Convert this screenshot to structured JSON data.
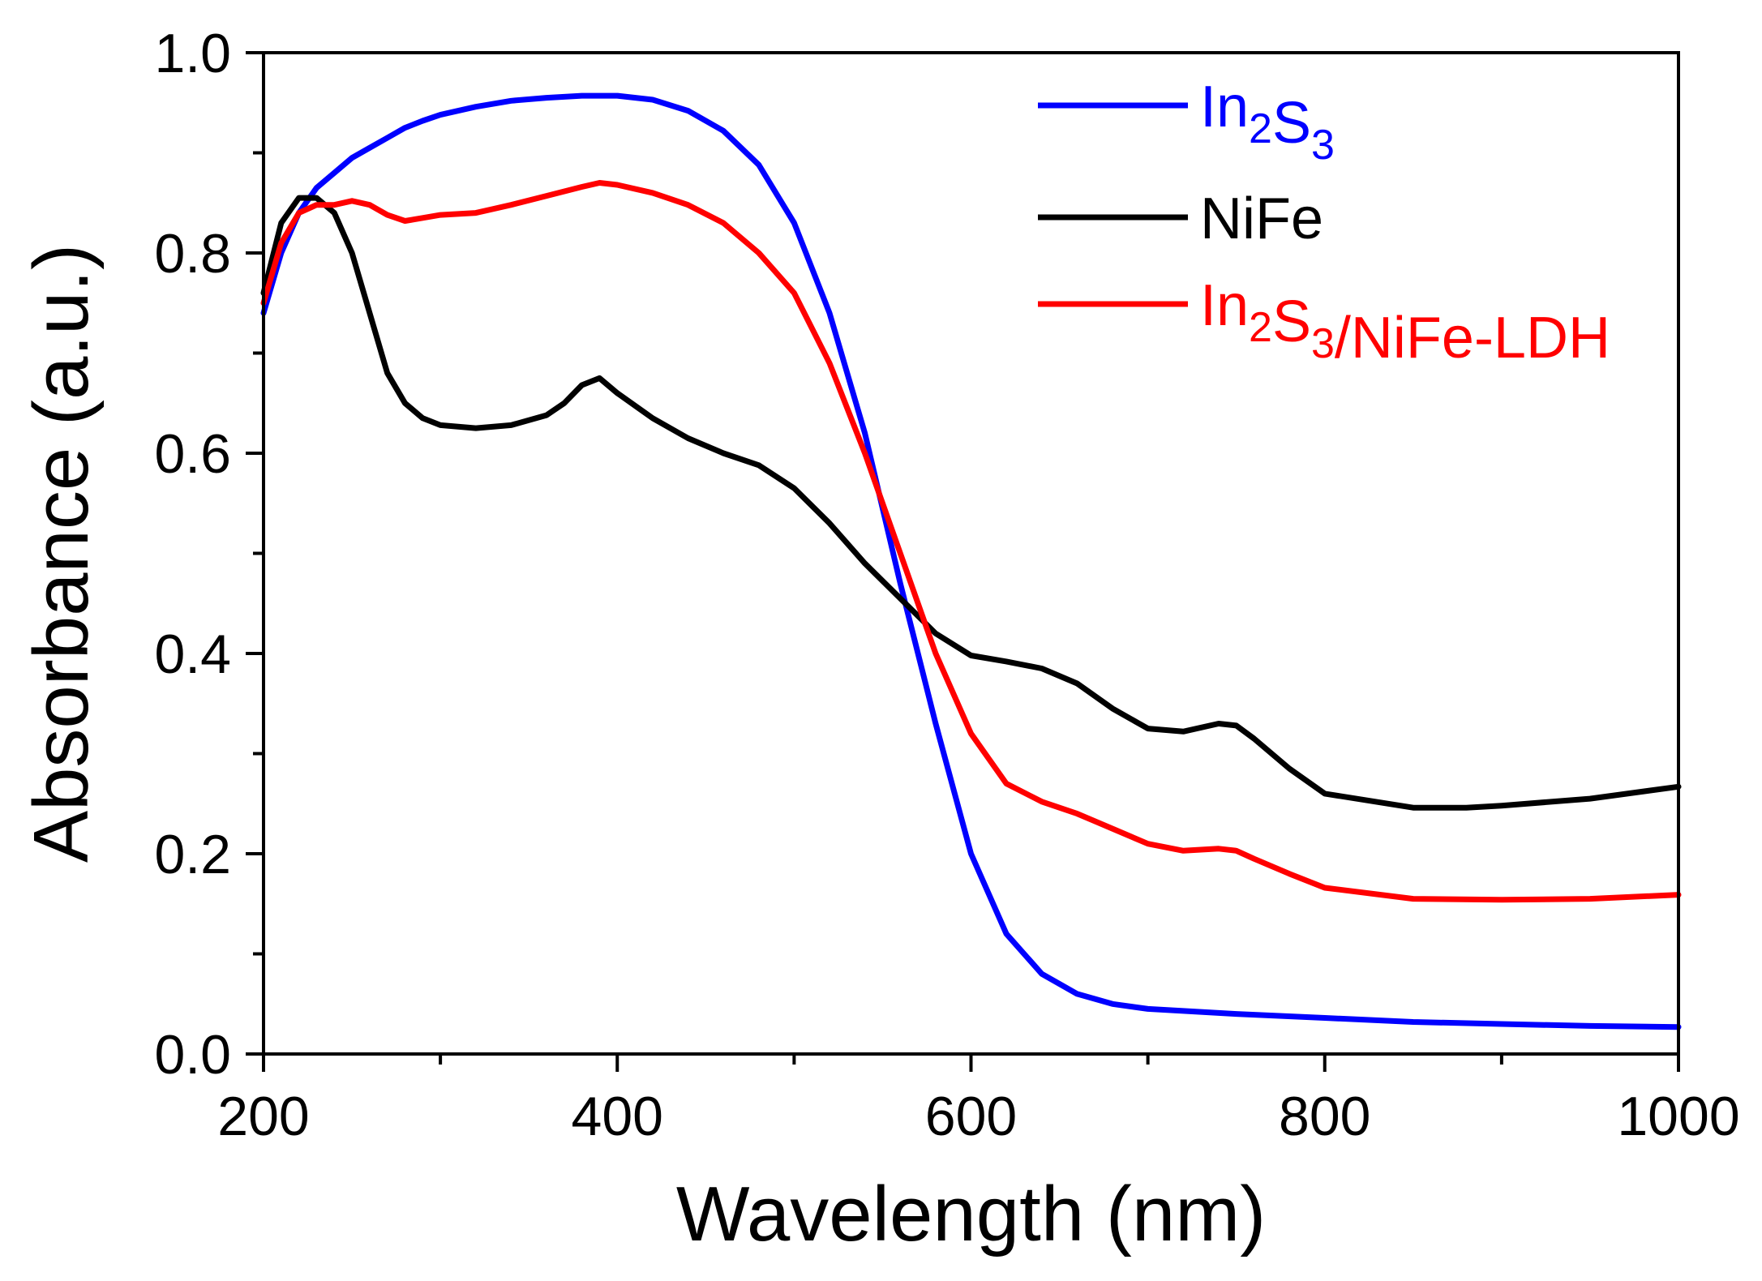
{
  "chart_data": {
    "type": "line",
    "title": "",
    "xlabel": "Wavelength (nm)",
    "ylabel": "Absorbance (a.u.)",
    "xlim": [
      200,
      1000
    ],
    "ylim": [
      0.0,
      1.0
    ],
    "xticks": [
      200,
      400,
      600,
      800,
      1000
    ],
    "xtick_labels": [
      "200",
      "400",
      "600",
      "800",
      "1000"
    ],
    "yticks": [
      0.0,
      0.2,
      0.4,
      0.6,
      0.8,
      1.0
    ],
    "ytick_labels": [
      "0.0",
      "0.2",
      "0.4",
      "0.6",
      "0.8",
      "1.0"
    ],
    "grid": false,
    "legend_position": "top-right",
    "series": [
      {
        "name": "In2S3",
        "legend_parts": [
          [
            "In",
            ""
          ],
          [
            "2",
            "sub"
          ],
          [
            "S",
            ""
          ],
          [
            "3",
            "sub"
          ]
        ],
        "color": "#0000ff",
        "x": [
          200,
          210,
          220,
          230,
          240,
          250,
          260,
          270,
          280,
          290,
          300,
          320,
          340,
          360,
          380,
          400,
          420,
          440,
          460,
          480,
          500,
          520,
          540,
          560,
          580,
          600,
          620,
          640,
          660,
          680,
          700,
          750,
          800,
          850,
          900,
          950,
          1000
        ],
        "y": [
          0.74,
          0.8,
          0.84,
          0.865,
          0.88,
          0.895,
          0.905,
          0.915,
          0.925,
          0.932,
          0.938,
          0.946,
          0.952,
          0.955,
          0.957,
          0.957,
          0.953,
          0.942,
          0.922,
          0.888,
          0.83,
          0.74,
          0.62,
          0.47,
          0.33,
          0.2,
          0.12,
          0.08,
          0.06,
          0.05,
          0.045,
          0.04,
          0.036,
          0.032,
          0.03,
          0.028,
          0.027
        ]
      },
      {
        "name": "NiFe",
        "legend_parts": [
          [
            "NiFe",
            ""
          ]
        ],
        "color": "#000000",
        "x": [
          200,
          210,
          220,
          230,
          240,
          250,
          260,
          270,
          280,
          290,
          300,
          320,
          340,
          360,
          370,
          380,
          390,
          400,
          420,
          440,
          460,
          480,
          500,
          520,
          540,
          560,
          580,
          600,
          620,
          640,
          660,
          680,
          700,
          720,
          740,
          750,
          760,
          780,
          800,
          850,
          880,
          900,
          950,
          1000
        ],
        "y": [
          0.76,
          0.83,
          0.855,
          0.855,
          0.84,
          0.8,
          0.74,
          0.68,
          0.65,
          0.635,
          0.628,
          0.625,
          0.628,
          0.638,
          0.65,
          0.668,
          0.675,
          0.66,
          0.635,
          0.615,
          0.6,
          0.588,
          0.565,
          0.53,
          0.49,
          0.455,
          0.42,
          0.398,
          0.392,
          0.385,
          0.37,
          0.345,
          0.325,
          0.322,
          0.33,
          0.328,
          0.315,
          0.285,
          0.26,
          0.246,
          0.246,
          0.248,
          0.255,
          0.267
        ]
      },
      {
        "name": "In2S3/NiFe-LDH",
        "legend_parts": [
          [
            "In",
            ""
          ],
          [
            "2",
            "sub"
          ],
          [
            "S",
            ""
          ],
          [
            "3",
            "sub"
          ],
          [
            "/NiFe-LDH",
            ""
          ]
        ],
        "color": "#ff0000",
        "x": [
          200,
          210,
          220,
          230,
          240,
          250,
          260,
          270,
          280,
          290,
          300,
          320,
          340,
          360,
          380,
          390,
          400,
          420,
          440,
          460,
          480,
          500,
          520,
          540,
          560,
          580,
          600,
          620,
          640,
          660,
          680,
          700,
          720,
          740,
          750,
          760,
          780,
          800,
          850,
          900,
          950,
          1000
        ],
        "y": [
          0.75,
          0.81,
          0.84,
          0.848,
          0.848,
          0.852,
          0.848,
          0.838,
          0.832,
          0.835,
          0.838,
          0.84,
          0.848,
          0.857,
          0.866,
          0.87,
          0.868,
          0.86,
          0.848,
          0.83,
          0.8,
          0.76,
          0.69,
          0.6,
          0.5,
          0.4,
          0.32,
          0.27,
          0.252,
          0.24,
          0.225,
          0.21,
          0.203,
          0.205,
          0.203,
          0.195,
          0.18,
          0.166,
          0.155,
          0.154,
          0.155,
          0.159
        ]
      }
    ]
  }
}
